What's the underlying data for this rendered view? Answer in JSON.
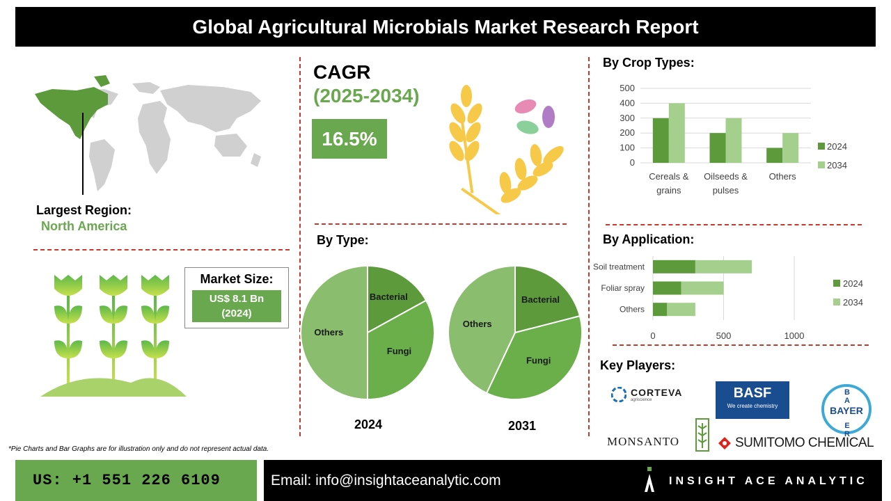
{
  "header": {
    "title": "Global Agricultural Microbials Market Research Report"
  },
  "region": {
    "label": "Largest Region:",
    "value": "North America"
  },
  "market_size": {
    "label": "Market Size:",
    "value_line1": "US$ 8.1 Bn",
    "value_line2": "(2024)"
  },
  "cagr": {
    "label": "CAGR",
    "period": "(2025-2034)",
    "value": "16.5%"
  },
  "sections": {
    "crop_types": "By Crop Types:",
    "type": "By Type:",
    "application": "By Application:",
    "key_players": "Key Players:"
  },
  "pie_years": [
    "2024",
    "2031"
  ],
  "key_players": {
    "corteva": "CORTEVA",
    "corteva_sub": "agriscience",
    "basf": "BASF",
    "basf_tag": "We create chemistry",
    "bayer": "BAYER",
    "monsanto": "MONSANTO",
    "sumitomo": "SUMITOMO CHEMICAL"
  },
  "footnote": "*Pie Charts and Bar Graphs are for illustration only and do not represent actual data.",
  "footer": {
    "phone": "US: +1 551 226 6109",
    "email": "Email: info@insightaceanalytic.com",
    "brand": "INSIGHT ACE ANALYTIC"
  },
  "colors": {
    "dark_green": "#5c9a3c",
    "light_green": "#a5cf8c",
    "mid_green": "#6aa84f",
    "divider": "#c0392b"
  },
  "chart_data": [
    {
      "type": "bar",
      "title": "By Crop Types:",
      "categories": [
        "Cereals & grains",
        "Oilseeds & pulses",
        "Others"
      ],
      "series": [
        {
          "name": "2024",
          "values": [
            300,
            200,
            100
          ]
        },
        {
          "name": "2034",
          "values": [
            400,
            300,
            200
          ]
        }
      ],
      "ylim": [
        0,
        500
      ],
      "yticks": [
        0,
        100,
        200,
        300,
        400,
        500
      ],
      "grid": true,
      "legend": "right"
    },
    {
      "type": "pie",
      "title": "2024",
      "labels": [
        "Bacterial",
        "Fungi",
        "Others"
      ],
      "values": [
        17,
        33,
        50
      ]
    },
    {
      "type": "pie",
      "title": "2031",
      "labels": [
        "Bacterial",
        "Fungi",
        "Others"
      ],
      "values": [
        21,
        36,
        43
      ]
    },
    {
      "type": "bar",
      "orientation": "horizontal",
      "stacked": true,
      "title": "By Application:",
      "categories": [
        "Soil treatment",
        "Foliar spray",
        "Others"
      ],
      "series": [
        {
          "name": "2024",
          "values": [
            300,
            200,
            100
          ]
        },
        {
          "name": "2034",
          "values": [
            400,
            300,
            200
          ]
        }
      ],
      "xlim": [
        0,
        1000
      ],
      "xticks": [
        0,
        500,
        1000
      ],
      "grid": true,
      "legend": "right"
    }
  ]
}
